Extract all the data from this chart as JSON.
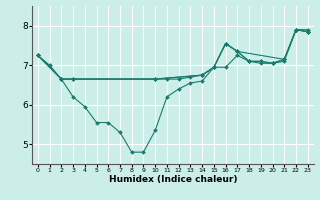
{
  "xlabel": "Humidex (Indice chaleur)",
  "bg_color": "#cceee8",
  "grid_color": "#ffffff",
  "line_color": "#1a7a6e",
  "xlim": [
    -0.5,
    23.5
  ],
  "ylim": [
    4.5,
    8.5
  ],
  "yticks": [
    5,
    6,
    7,
    8
  ],
  "xticks": [
    0,
    1,
    2,
    3,
    4,
    5,
    6,
    7,
    8,
    9,
    10,
    11,
    12,
    13,
    14,
    15,
    16,
    17,
    18,
    19,
    20,
    21,
    22,
    23
  ],
  "lines": [
    {
      "x": [
        0,
        1,
        2,
        3,
        4,
        5,
        6,
        7,
        8,
        9,
        10,
        11,
        12,
        13,
        14,
        15,
        16,
        17,
        18,
        19,
        20,
        21,
        22,
        23
      ],
      "y": [
        7.25,
        7.0,
        6.65,
        6.2,
        5.95,
        5.55,
        5.55,
        5.3,
        4.8,
        4.8,
        5.35,
        6.2,
        6.4,
        6.55,
        6.6,
        6.95,
        6.95,
        7.25,
        7.1,
        7.05,
        7.05,
        7.1,
        7.9,
        7.9
      ]
    },
    {
      "x": [
        0,
        2,
        3,
        10,
        14,
        15,
        16,
        17,
        18,
        19,
        20,
        21,
        22,
        23
      ],
      "y": [
        7.25,
        6.65,
        6.65,
        6.65,
        6.75,
        6.95,
        7.55,
        7.35,
        7.1,
        7.1,
        7.05,
        7.15,
        7.9,
        7.85
      ]
    },
    {
      "x": [
        0,
        2,
        3,
        10,
        11,
        12,
        13,
        14,
        15,
        16,
        17,
        18,
        19,
        20,
        21,
        22,
        23
      ],
      "y": [
        7.25,
        6.65,
        6.65,
        6.65,
        6.65,
        6.65,
        6.7,
        6.75,
        6.95,
        7.55,
        7.35,
        7.1,
        7.1,
        7.05,
        7.15,
        7.9,
        7.85
      ]
    },
    {
      "x": [
        0,
        2,
        10,
        14,
        15,
        16,
        17,
        21,
        22,
        23
      ],
      "y": [
        7.25,
        6.65,
        6.65,
        6.75,
        6.95,
        7.55,
        7.35,
        7.15,
        7.9,
        7.85
      ]
    }
  ]
}
